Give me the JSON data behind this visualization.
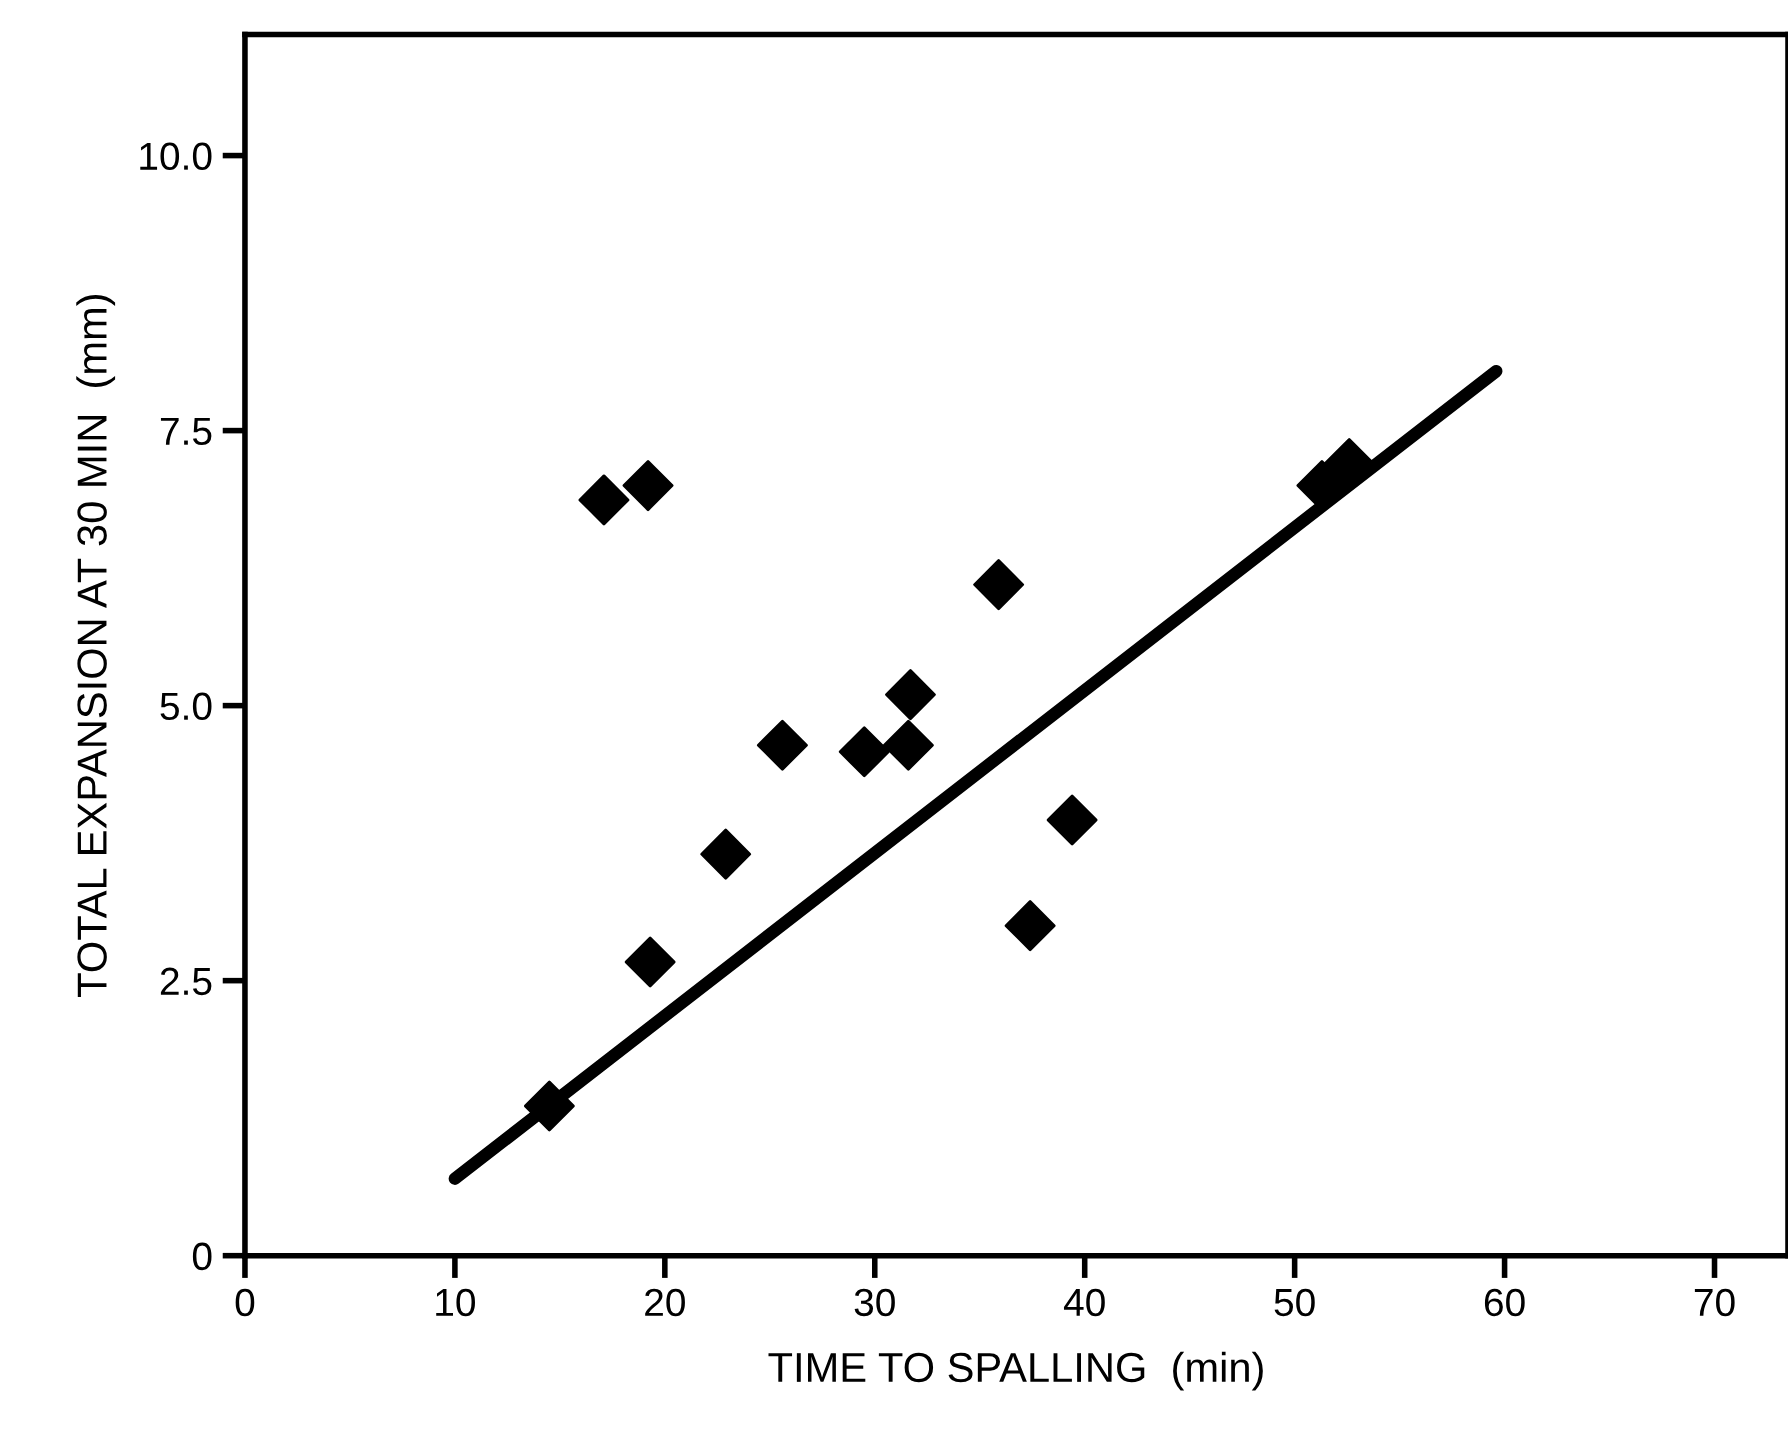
{
  "chart_data": {
    "type": "scatter",
    "xlabel": "TIME TO SPALLING  (min)",
    "ylabel": "TOTAL EXPANSION AT 30 MIN  (mm)",
    "xlim": [
      0,
      73.5
    ],
    "ylim": [
      0,
      11.1
    ],
    "xticks": [
      0,
      10,
      20,
      30,
      40,
      50,
      60,
      70
    ],
    "yticks": [
      0,
      {
        "value": 2.5,
        "label": "2.5"
      },
      {
        "value": 5,
        "label": "5.0"
      },
      {
        "value": 7.5,
        "label": "7.5"
      },
      {
        "value": 10,
        "label": "10.0"
      }
    ],
    "grid": false,
    "legend": false,
    "marker": "diamond",
    "series": [
      {
        "color": "#000000",
        "x": [
          14.5,
          17.1,
          19.2,
          19.3,
          22.9,
          25.6,
          29.5,
          31.6,
          31.7,
          35.9,
          37.4,
          39.4,
          51.3,
          52.6
        ],
        "values": [
          1.36,
          6.87,
          7.0,
          2.67,
          3.65,
          4.64,
          4.58,
          4.64,
          5.1,
          6.1,
          3.0,
          3.96,
          7.0,
          7.2
        ]
      },
      {
        "type": "line",
        "color": "#000000",
        "x": [
          10,
          59.6
        ],
        "values": [
          0.7,
          8.04
        ],
        "line_style": "solid",
        "marker": "none"
      }
    ]
  }
}
